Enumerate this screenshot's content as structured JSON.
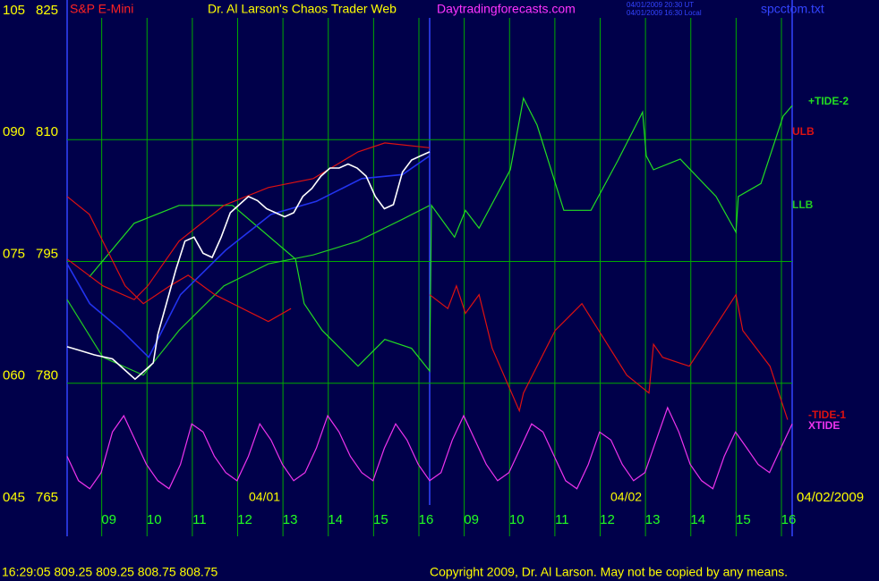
{
  "chart_data": {
    "type": "line",
    "title": "Dr. Al Larson's Chaos Trader Web",
    "subtitle": "S&P E-Mini",
    "site": "Daytradingforecasts.com",
    "time_ut": "04/01/2009 20:30 UT",
    "time_local": "04/01/2009 16:30 Local",
    "file_name": "spcctom.txt",
    "date_labels": [
      "04/01",
      "04/02"
    ],
    "end_date": "04/02/2009",
    "status": "16:29:05  809.25 809.25 808.75 808.75",
    "copyright": "Copyright 2009, Dr. Al Larson. May not be copied by any means.",
    "grid": true,
    "ylim": [
      765,
      825
    ],
    "yticks": [
      765,
      780,
      795,
      810,
      825
    ],
    "y2lim": [
      45,
      105
    ],
    "y2ticks": [
      {
        "value": 45,
        "label": "045"
      },
      {
        "value": 60,
        "label": "060"
      },
      {
        "value": 75,
        "label": "075"
      },
      {
        "value": 90,
        "label": "090"
      },
      {
        "value": 105,
        "label": "105"
      }
    ],
    "xlim": [
      0,
      16
    ],
    "xticks": [
      {
        "value": 1,
        "label": "09"
      },
      {
        "value": 2,
        "label": "10"
      },
      {
        "value": 3,
        "label": "11"
      },
      {
        "value": 4,
        "label": "12"
      },
      {
        "value": 5,
        "label": "13"
      },
      {
        "value": 6,
        "label": "14"
      },
      {
        "value": 7,
        "label": "15"
      },
      {
        "value": 8,
        "label": "16"
      },
      {
        "value": 9,
        "label": "09"
      },
      {
        "value": 10,
        "label": "10"
      },
      {
        "value": 11,
        "label": "11"
      },
      {
        "value": 12,
        "label": "12"
      },
      {
        "value": 13,
        "label": "13"
      },
      {
        "value": 14,
        "label": "14"
      },
      {
        "value": 15,
        "label": "15"
      },
      {
        "value": 16,
        "label": "16"
      }
    ],
    "series": [
      {
        "name": "+TIDE-2",
        "color": "#22dd22",
        "x": [
          0.49,
          1.48,
          2.47,
          3.65,
          5.04,
          5.23,
          5.63,
          6.42,
          7.01,
          7.6,
          8.0,
          8.04,
          8.55,
          8.79,
          9.09,
          9.78,
          10.07,
          10.37,
          10.96,
          11.56,
          12.15,
          12.7,
          12.78,
          12.94,
          13.53,
          14.32,
          14.76,
          14.81,
          15.31,
          15.8,
          16
        ],
        "values": [
          793.1,
          799.7,
          801.9,
          801.9,
          795.3,
          789.8,
          786.5,
          782.1,
          785.4,
          784.3,
          781.5,
          801.9,
          798.0,
          801.3,
          799.1,
          806.3,
          815.1,
          811.8,
          801.3,
          801.3,
          807.4,
          813.4,
          808.0,
          806.3,
          807.6,
          803.0,
          798.6,
          803.0,
          804.6,
          812.9,
          814.2
        ]
      },
      {
        "name": "ULB",
        "color": "#dd1111",
        "x": [
          0,
          0.79,
          1.48,
          1.78,
          2.47,
          3.46,
          4.44,
          5.43,
          6.42,
          7.01,
          8.0
        ],
        "values": [
          795.3,
          792.0,
          790.3,
          792.0,
          797.5,
          801.9,
          804.1,
          805.2,
          808.5,
          809.6,
          809.0
        ]
      },
      {
        "name": "LLB",
        "color": "#22cc22",
        "x": [
          0,
          0.79,
          1.68,
          2.47,
          3.46,
          4.44,
          5.43,
          6.42,
          7.4,
          8.0
        ],
        "values": [
          790.3,
          783.2,
          781.0,
          786.5,
          792.0,
          794.7,
          795.8,
          797.5,
          800.2,
          801.9
        ]
      },
      {
        "name": "-TIDE-1",
        "color": "#dd1111",
        "x": [
          0,
          0.49,
          1.28,
          1.68,
          2.27,
          2.67,
          3.26,
          4.44,
          4.94,
          6.0,
          8.0,
          8.4,
          8.59,
          8.79,
          9.09,
          9.38,
          9.98,
          10.07,
          10.77,
          11.36,
          12.35,
          12.84,
          12.94,
          13.14,
          13.73,
          14.12,
          14.76,
          14.91,
          15.51,
          15.9
        ],
        "values": [
          803.0,
          800.8,
          792.0,
          789.8,
          792.0,
          793.3,
          790.9,
          787.6,
          789.2,
          null,
          790.9,
          789.2,
          792.0,
          788.6,
          790.9,
          784.3,
          776.6,
          778.8,
          786.5,
          789.8,
          781.0,
          778.8,
          784.8,
          783.2,
          782.1,
          785.4,
          790.9,
          786.5,
          782.1,
          775.5
        ]
      },
      {
        "name": "XTIDE",
        "color": "#ee33ee",
        "x": [
          0,
          0.25,
          0.5,
          0.75,
          1,
          1.25,
          1.5,
          1.75,
          2,
          2.25,
          2.5,
          2.75,
          3,
          3.25,
          3.5,
          3.75,
          4,
          4.25,
          4.5,
          4.75,
          5,
          5.25,
          5.5,
          5.75,
          6,
          6.25,
          6.5,
          6.75,
          7,
          7.25,
          7.5,
          7.75,
          8,
          8.25,
          8.5,
          8.75,
          9,
          9.25,
          9.5,
          9.75,
          10,
          10.25,
          10.5,
          10.75,
          11,
          11.25,
          11.5,
          11.75,
          12,
          12.25,
          12.5,
          12.75,
          13,
          13.25,
          13.5,
          13.75,
          14,
          14.25,
          14.5,
          14.75,
          15,
          15.25,
          15.5,
          15.75,
          16
        ],
        "values": [
          771,
          768,
          767,
          769,
          774,
          776,
          773,
          770,
          768,
          767,
          770,
          775,
          774,
          771,
          769,
          768,
          771,
          775,
          773,
          770,
          768,
          769,
          772,
          776,
          774,
          771,
          769,
          768,
          772,
          775,
          773,
          770,
          768,
          769,
          773,
          776,
          773,
          770,
          768,
          769,
          772,
          775,
          774,
          771,
          768,
          767,
          770,
          774,
          773,
          770,
          768,
          769,
          773,
          777,
          774,
          770,
          768,
          767,
          771,
          774,
          772,
          770,
          769,
          772,
          775
        ]
      },
      {
        "color": "#2233ee",
        "x": [
          0,
          0.5,
          1.2,
          1.8,
          2.5,
          3.5,
          4.5,
          5.5,
          6.5,
          7.4,
          8.0
        ],
        "values": [
          794.7,
          789.8,
          786.5,
          783.2,
          790.9,
          796.4,
          800.8,
          802.4,
          805.2,
          805.7,
          808.0
        ]
      },
      {
        "color": "#ffffff",
        "x": [
          0,
          0.3,
          0.6,
          1.0,
          1.3,
          1.5,
          1.7,
          1.9,
          2.0,
          2.2,
          2.4,
          2.6,
          2.8,
          3.0,
          3.2,
          3.4,
          3.6,
          3.8,
          4.0,
          4.2,
          4.4,
          4.6,
          4.8,
          5.0,
          5.2,
          5.4,
          5.6,
          5.8,
          6.0,
          6.2,
          6.4,
          6.6,
          6.8,
          7.0,
          7.2,
          7.4,
          7.6,
          7.8,
          8.0
        ],
        "values": [
          784.5,
          784,
          783.5,
          783,
          781.5,
          780.5,
          781.5,
          782.5,
          786,
          790,
          794,
          797.5,
          798,
          796,
          795.5,
          798,
          801,
          802,
          803,
          802.5,
          801.5,
          801,
          800.5,
          801,
          803,
          804,
          805.5,
          806.5,
          806.5,
          807,
          806.5,
          805.5,
          803,
          801.5,
          802,
          806,
          807.5,
          808,
          808.5
        ]
      }
    ]
  }
}
